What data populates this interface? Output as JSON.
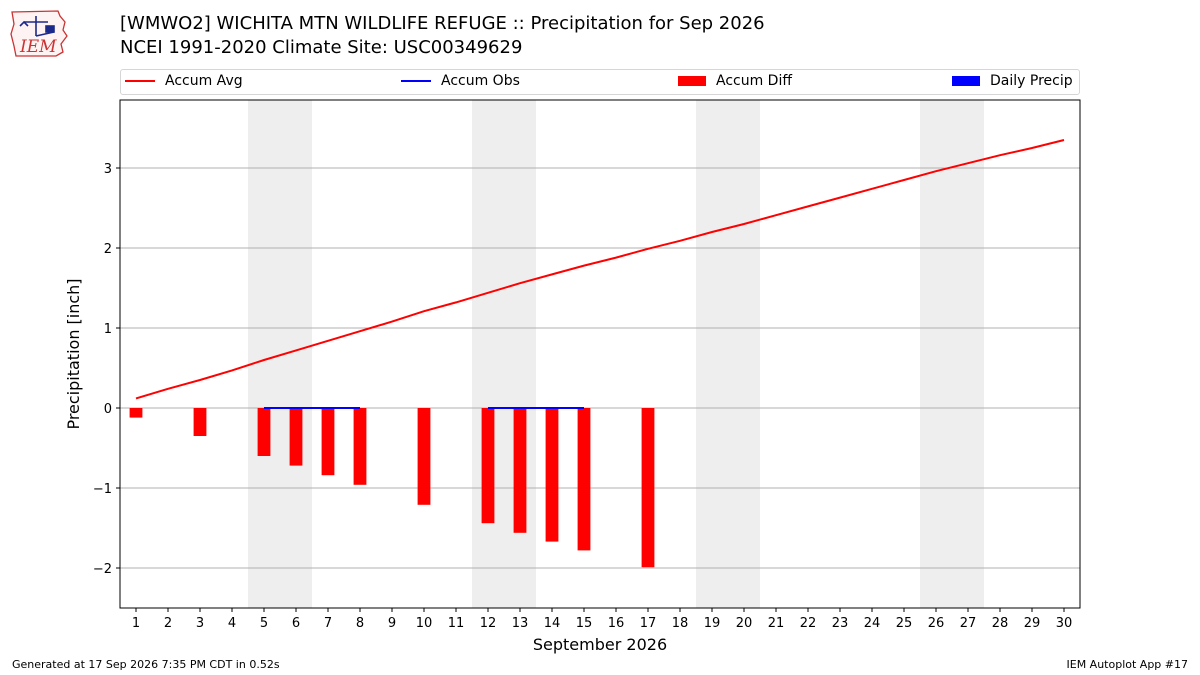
{
  "header": {
    "title_line1": "[WMWO2] WICHITA MTN WILDLIFE REFUGE :: Precipitation for Sep 2026",
    "title_line2": "NCEI 1991-2020 Climate Site: USC00349629",
    "logo_text": "IEM"
  },
  "legend": {
    "items": [
      {
        "label": "Accum Avg",
        "color": "#ff0000",
        "kind": "line"
      },
      {
        "label": "Accum Obs",
        "color": "#0000ff",
        "kind": "line"
      },
      {
        "label": "Accum Diff",
        "color": "#ff0000",
        "kind": "box"
      },
      {
        "label": "Daily Precip",
        "color": "#0000ff",
        "kind": "box"
      }
    ]
  },
  "footer": {
    "left": "Generated at 17 Sep 2026 7:35 PM CDT in 0.52s",
    "right": "IEM Autoplot App #17"
  },
  "chart_data": {
    "type": "bar",
    "title": "[WMWO2] WICHITA MTN WILDLIFE REFUGE :: Precipitation for Sep 2026",
    "xlabel": "September 2026",
    "ylabel": "Precipitation [inch]",
    "x": [
      1,
      2,
      3,
      4,
      5,
      6,
      7,
      8,
      9,
      10,
      11,
      12,
      13,
      14,
      15,
      16,
      17,
      18,
      19,
      20,
      21,
      22,
      23,
      24,
      25,
      26,
      27,
      28,
      29,
      30
    ],
    "xlim": [
      0.5,
      30.5
    ],
    "ylim": [
      -2.5,
      3.85
    ],
    "yticks": [
      -2,
      -1,
      0,
      1,
      2,
      3
    ],
    "grid": "horizontal",
    "legend_position": "top",
    "weekend_shading": [
      [
        4.5,
        6.5
      ],
      [
        11.5,
        13.5
      ],
      [
        18.5,
        20.5
      ],
      [
        25.5,
        27.5
      ]
    ],
    "series": [
      {
        "name": "Accum Avg",
        "kind": "line",
        "color": "#ff0000",
        "x": [
          1,
          2,
          3,
          4,
          5,
          6,
          7,
          8,
          9,
          10,
          11,
          12,
          13,
          14,
          15,
          16,
          17,
          18,
          19,
          20,
          21,
          22,
          23,
          24,
          25,
          26,
          27,
          28,
          29,
          30
        ],
        "values": [
          0.12,
          0.24,
          0.35,
          0.47,
          0.6,
          0.72,
          0.84,
          0.96,
          1.08,
          1.21,
          1.32,
          1.44,
          1.56,
          1.67,
          1.78,
          1.88,
          1.99,
          2.09,
          2.2,
          2.3,
          2.41,
          2.52,
          2.63,
          2.74,
          2.85,
          2.96,
          3.06,
          3.16,
          3.25,
          3.35
        ]
      },
      {
        "name": "Accum Obs",
        "kind": "line",
        "color": "#0000ff",
        "segments": [
          {
            "x": [
              5,
              8
            ],
            "values": [
              0.0,
              0.0
            ]
          },
          {
            "x": [
              12,
              15
            ],
            "values": [
              0.0,
              0.0
            ]
          }
        ]
      },
      {
        "name": "Accum Diff",
        "kind": "bar",
        "color": "#ff0000",
        "x": [
          1,
          3,
          5,
          6,
          7,
          8,
          10,
          12,
          13,
          14,
          15,
          17
        ],
        "values": [
          -0.12,
          -0.35,
          -0.6,
          -0.72,
          -0.84,
          -0.96,
          -1.21,
          -1.44,
          -1.56,
          -1.67,
          -1.78,
          -1.99
        ]
      },
      {
        "name": "Daily Precip",
        "kind": "bar",
        "color": "#0000ff",
        "x": [],
        "values": []
      }
    ]
  }
}
